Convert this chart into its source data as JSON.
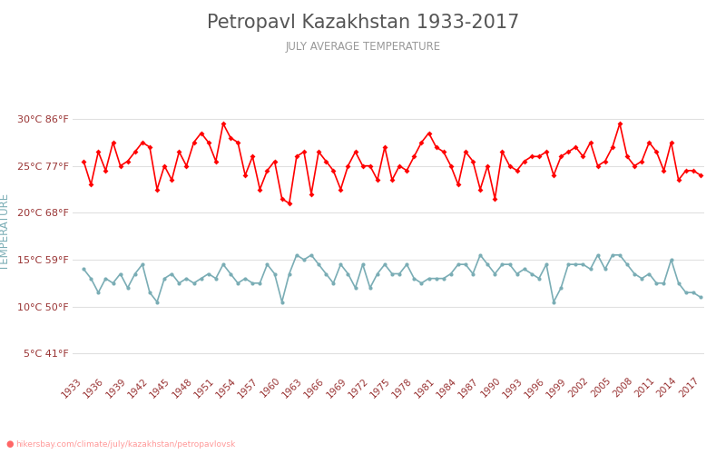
{
  "title": "Petropavl Kazakhstan 1933-2017",
  "subtitle": "JULY AVERAGE TEMPERATURE",
  "ylabel": "TEMPERATURE",
  "years": [
    1933,
    1934,
    1935,
    1936,
    1937,
    1938,
    1939,
    1940,
    1941,
    1942,
    1943,
    1944,
    1945,
    1946,
    1947,
    1948,
    1949,
    1950,
    1951,
    1952,
    1953,
    1954,
    1955,
    1956,
    1957,
    1958,
    1959,
    1960,
    1961,
    1962,
    1963,
    1964,
    1965,
    1966,
    1967,
    1968,
    1969,
    1970,
    1971,
    1972,
    1973,
    1974,
    1975,
    1976,
    1977,
    1978,
    1979,
    1980,
    1981,
    1982,
    1983,
    1984,
    1985,
    1986,
    1987,
    1988,
    1989,
    1990,
    1991,
    1992,
    1993,
    1994,
    1995,
    1996,
    1997,
    1998,
    1999,
    2000,
    2001,
    2002,
    2003,
    2004,
    2005,
    2006,
    2007,
    2008,
    2009,
    2010,
    2011,
    2012,
    2013,
    2014,
    2015,
    2016,
    2017
  ],
  "day_temps": [
    25.5,
    23.0,
    26.5,
    24.5,
    27.5,
    25.0,
    25.5,
    26.5,
    27.5,
    27.0,
    22.5,
    25.0,
    23.5,
    26.5,
    25.0,
    27.5,
    28.5,
    27.5,
    25.5,
    29.5,
    28.0,
    27.5,
    24.0,
    26.0,
    22.5,
    24.5,
    25.5,
    21.5,
    21.0,
    26.0,
    26.5,
    22.0,
    26.5,
    25.5,
    24.5,
    22.5,
    25.0,
    26.5,
    25.0,
    25.0,
    23.5,
    27.0,
    23.5,
    25.0,
    24.5,
    26.0,
    27.5,
    28.5,
    27.0,
    26.5,
    25.0,
    23.0,
    26.5,
    25.5,
    22.5,
    25.0,
    21.5,
    26.5,
    25.0,
    24.5,
    25.5,
    26.0,
    26.0,
    26.5,
    24.0,
    26.0,
    26.5,
    27.0,
    26.0,
    27.5,
    25.0,
    25.5,
    27.0,
    29.5,
    26.0,
    25.0,
    25.5,
    27.5,
    26.5,
    24.5,
    27.5,
    23.5,
    24.5,
    24.5,
    24.0
  ],
  "night_temps": [
    14.0,
    13.0,
    11.5,
    13.0,
    12.5,
    13.5,
    12.0,
    13.5,
    14.5,
    11.5,
    10.5,
    13.0,
    13.5,
    12.5,
    13.0,
    12.5,
    13.0,
    13.5,
    13.0,
    14.5,
    13.5,
    12.5,
    13.0,
    12.5,
    12.5,
    14.5,
    13.5,
    10.5,
    13.5,
    15.5,
    15.0,
    15.5,
    14.5,
    13.5,
    12.5,
    14.5,
    13.5,
    12.0,
    14.5,
    12.0,
    13.5,
    14.5,
    13.5,
    13.5,
    14.5,
    13.0,
    12.5,
    13.0,
    13.0,
    13.0,
    13.5,
    14.5,
    14.5,
    13.5,
    15.5,
    14.5,
    13.5,
    14.5,
    14.5,
    13.5,
    14.0,
    13.5,
    13.0,
    14.5,
    10.5,
    12.0,
    14.5,
    14.5,
    14.5,
    14.0,
    15.5,
    14.0,
    15.5,
    15.5,
    14.5,
    13.5,
    13.0,
    13.5,
    12.5,
    12.5,
    15.0,
    12.5,
    11.5,
    11.5,
    11.0
  ],
  "day_color": "#ff0000",
  "night_color": "#7aadb5",
  "title_color": "#555555",
  "subtitle_color": "#999999",
  "axis_label_color": "#7aadb5",
  "tick_color": "#993333",
  "background_color": "#ffffff",
  "grid_color": "#e0e0e0",
  "yticks_c": [
    5,
    10,
    15,
    20,
    25,
    30
  ],
  "yticks_f": [
    41,
    50,
    59,
    68,
    77,
    86
  ],
  "ylim": [
    3,
    33
  ],
  "xlim_left": 1931.5,
  "xlim_right": 2017.5,
  "watermark": "hikersbay.com/climate/july/kazakhstan/petropavlovsk",
  "watermark_color": "#ff9999",
  "pin_color": "#ff6666"
}
